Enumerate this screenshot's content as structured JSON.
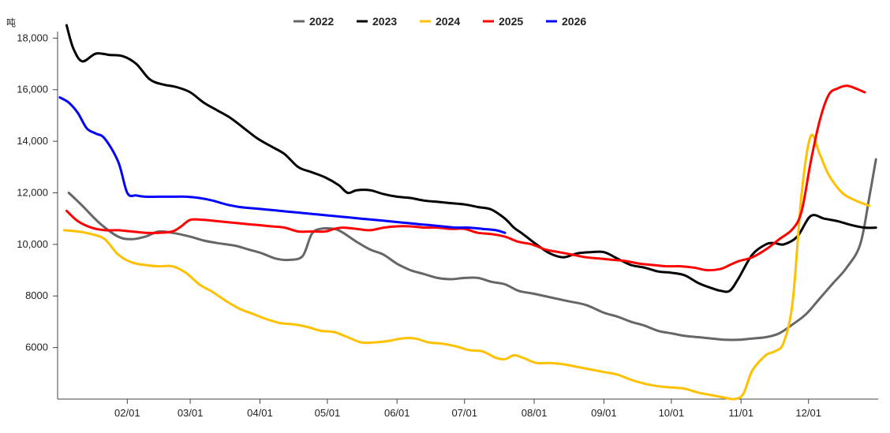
{
  "chart_data": {
    "type": "line",
    "y_unit": "吨",
    "ylim": [
      4000,
      18500
    ],
    "xlim": [
      1,
      366
    ],
    "grid": false,
    "legend_position": "top-center",
    "y_ticks": [
      {
        "label": "6000",
        "value": 6000
      },
      {
        "label": "8000",
        "value": 8000
      },
      {
        "label": "10,000",
        "value": 10000
      },
      {
        "label": "12,000",
        "value": 12000
      },
      {
        "label": "14,000",
        "value": 14000
      },
      {
        "label": "16,000",
        "value": 16000
      },
      {
        "label": "18,000",
        "value": 18000
      }
    ],
    "x_ticks": [
      {
        "label": "02/01",
        "day": 32
      },
      {
        "label": "03/01",
        "day": 60
      },
      {
        "label": "04/01",
        "day": 91
      },
      {
        "label": "05/01",
        "day": 121
      },
      {
        "label": "06/01",
        "day": 152
      },
      {
        "label": "07/01",
        "day": 182
      },
      {
        "label": "08/01",
        "day": 213
      },
      {
        "label": "09/01",
        "day": 244
      },
      {
        "label": "10/01",
        "day": 274
      },
      {
        "label": "11/01",
        "day": 305
      },
      {
        "label": "12/01",
        "day": 335
      }
    ],
    "series": [
      {
        "name": "2022",
        "color": "#666666",
        "x": [
          6,
          12,
          20,
          28,
          34,
          40,
          46,
          52,
          60,
          66,
          72,
          80,
          86,
          92,
          98,
          104,
          110,
          114,
          118,
          124,
          128,
          134,
          140,
          146,
          152,
          158,
          164,
          170,
          176,
          182,
          188,
          194,
          200,
          206,
          212,
          220,
          228,
          236,
          244,
          250,
          256,
          262,
          268,
          274,
          280,
          286,
          292,
          298,
          304,
          310,
          316,
          322,
          328,
          334,
          340,
          346,
          352,
          358,
          362,
          365
        ],
        "values": [
          12000,
          11500,
          10800,
          10300,
          10200,
          10300,
          10500,
          10450,
          10300,
          10150,
          10050,
          9950,
          9800,
          9650,
          9450,
          9400,
          9550,
          10400,
          10600,
          10600,
          10450,
          10100,
          9800,
          9600,
          9250,
          9000,
          8850,
          8700,
          8650,
          8700,
          8700,
          8550,
          8450,
          8200,
          8100,
          7950,
          7800,
          7650,
          7350,
          7200,
          7000,
          6850,
          6650,
          6550,
          6450,
          6400,
          6350,
          6300,
          6300,
          6350,
          6400,
          6550,
          6900,
          7300,
          7900,
          8500,
          9100,
          10000,
          11800,
          13300
        ]
      },
      {
        "name": "2023",
        "color": "#000000",
        "x": [
          5,
          8,
          12,
          18,
          24,
          30,
          36,
          42,
          48,
          54,
          60,
          66,
          72,
          78,
          84,
          90,
          96,
          102,
          108,
          114,
          120,
          126,
          130,
          134,
          140,
          146,
          152,
          158,
          164,
          170,
          176,
          182,
          188,
          194,
          200,
          204,
          208,
          214,
          220,
          226,
          232,
          238,
          244,
          250,
          256,
          262,
          268,
          274,
          280,
          286,
          292,
          296,
          300,
          304,
          310,
          316,
          320,
          324,
          330,
          336,
          342,
          348,
          354,
          360,
          365
        ],
        "values": [
          18500,
          17600,
          17100,
          17400,
          17350,
          17300,
          17000,
          16400,
          16200,
          16100,
          15900,
          15500,
          15200,
          14900,
          14500,
          14100,
          13800,
          13500,
          13000,
          12800,
          12600,
          12300,
          12000,
          12100,
          12100,
          11950,
          11850,
          11800,
          11700,
          11650,
          11600,
          11550,
          11450,
          11350,
          11000,
          10650,
          10400,
          10000,
          9650,
          9500,
          9650,
          9700,
          9700,
          9450,
          9200,
          9100,
          8950,
          8900,
          8800,
          8500,
          8300,
          8200,
          8200,
          8700,
          9600,
          10000,
          10050,
          10000,
          10300,
          11100,
          11000,
          10900,
          10750,
          10650,
          10650
        ]
      },
      {
        "name": "2024",
        "color": "#ffc000",
        "x": [
          4,
          10,
          16,
          22,
          28,
          34,
          40,
          46,
          52,
          58,
          64,
          70,
          76,
          82,
          88,
          94,
          100,
          106,
          112,
          118,
          124,
          130,
          136,
          142,
          148,
          154,
          160,
          166,
          172,
          178,
          184,
          190,
          196,
          200,
          204,
          208,
          214,
          220,
          226,
          232,
          238,
          244,
          250,
          256,
          262,
          268,
          274,
          280,
          286,
          292,
          298,
          302,
          306,
          310,
          316,
          320,
          324,
          328,
          332,
          336,
          340,
          344,
          350,
          356,
          362
        ],
        "values": [
          10550,
          10500,
          10400,
          10200,
          9600,
          9300,
          9200,
          9150,
          9150,
          8900,
          8450,
          8150,
          7800,
          7500,
          7300,
          7100,
          6950,
          6900,
          6800,
          6650,
          6600,
          6400,
          6200,
          6200,
          6250,
          6350,
          6350,
          6200,
          6150,
          6050,
          5900,
          5850,
          5600,
          5550,
          5700,
          5600,
          5400,
          5400,
          5350,
          5250,
          5150,
          5050,
          4950,
          4750,
          4600,
          4500,
          4450,
          4400,
          4250,
          4150,
          4050,
          4000,
          4200,
          5100,
          5700,
          5850,
          6200,
          7800,
          12000,
          14200,
          13500,
          12700,
          12000,
          11700,
          11500
        ]
      },
      {
        "name": "2025",
        "color": "#ff0000",
        "x": [
          5,
          10,
          16,
          22,
          28,
          34,
          40,
          46,
          52,
          56,
          60,
          66,
          72,
          78,
          84,
          90,
          96,
          102,
          108,
          114,
          120,
          124,
          128,
          134,
          140,
          146,
          152,
          158,
          164,
          170,
          176,
          182,
          188,
          194,
          200,
          206,
          212,
          218,
          224,
          230,
          236,
          242,
          248,
          254,
          260,
          266,
          272,
          278,
          284,
          290,
          296,
          300,
          304,
          310,
          316,
          322,
          328,
          332,
          336,
          340,
          344,
          348,
          352,
          356,
          360
        ],
        "values": [
          11300,
          10900,
          10650,
          10550,
          10550,
          10500,
          10450,
          10450,
          10500,
          10700,
          10950,
          10950,
          10900,
          10850,
          10800,
          10750,
          10700,
          10650,
          10500,
          10500,
          10500,
          10600,
          10650,
          10600,
          10550,
          10650,
          10700,
          10700,
          10650,
          10650,
          10600,
          10600,
          10450,
          10400,
          10300,
          10100,
          10000,
          9800,
          9700,
          9600,
          9500,
          9450,
          9400,
          9350,
          9250,
          9200,
          9150,
          9150,
          9100,
          9000,
          9050,
          9200,
          9350,
          9500,
          9800,
          10200,
          10600,
          11300,
          13200,
          14800,
          15800,
          16050,
          16150,
          16050,
          15900
        ]
      },
      {
        "name": "2026",
        "color": "#0000ff",
        "x": [
          2,
          6,
          10,
          14,
          18,
          22,
          28,
          32,
          36,
          40,
          46,
          52,
          58,
          64,
          70,
          76,
          82,
          88,
          94,
          100,
          106,
          112,
          118,
          124,
          130,
          136,
          142,
          148,
          154,
          160,
          166,
          172,
          178,
          184,
          190,
          196,
          200
        ],
        "values": [
          15700,
          15500,
          15100,
          14500,
          14300,
          14100,
          13200,
          12000,
          11900,
          11850,
          11850,
          11850,
          11850,
          11800,
          11700,
          11550,
          11450,
          11400,
          11350,
          11300,
          11250,
          11200,
          11150,
          11100,
          11050,
          11000,
          10950,
          10900,
          10850,
          10800,
          10750,
          10700,
          10650,
          10650,
          10600,
          10550,
          10450
        ]
      }
    ]
  }
}
